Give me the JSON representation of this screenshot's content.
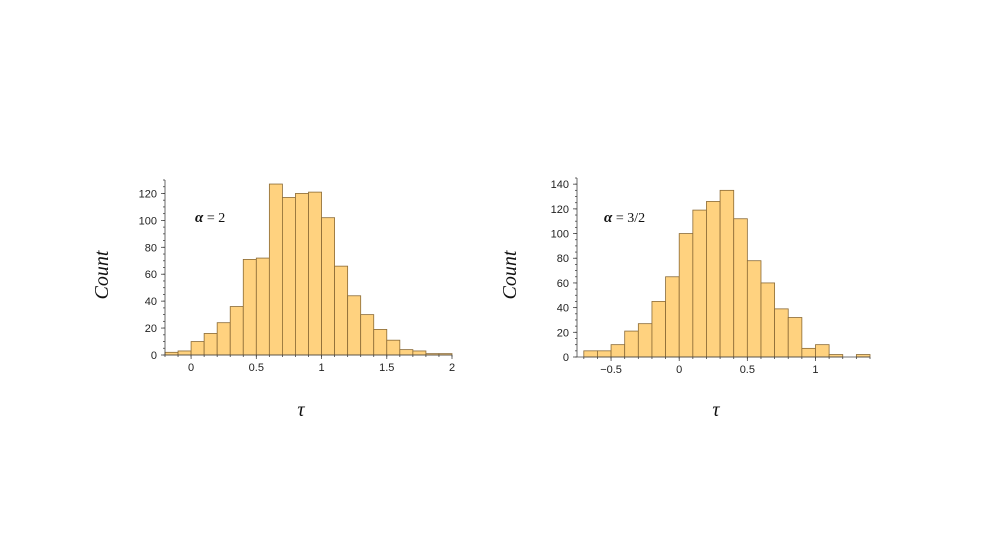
{
  "chart_data": [
    {
      "type": "bar",
      "subtype": "histogram",
      "annotation": {
        "symbol": "α",
        "text": " = 2"
      },
      "xlabel": "τ",
      "ylabel": "Count",
      "xlim": [
        -0.2,
        2.0
      ],
      "ylim": [
        0,
        130
      ],
      "xticks": [
        0,
        0.5,
        1,
        1.5,
        2
      ],
      "yticks": [
        0,
        20,
        40,
        60,
        80,
        100,
        120
      ],
      "bin_width": 0.1,
      "bin_starts": [
        -0.2,
        -0.1,
        0.0,
        0.1,
        0.2,
        0.3,
        0.4,
        0.5,
        0.6,
        0.7,
        0.8,
        0.9,
        1.0,
        1.1,
        1.2,
        1.3,
        1.4,
        1.5,
        1.6,
        1.7,
        1.8,
        1.9
      ],
      "values": [
        2,
        3,
        10,
        16,
        24,
        36,
        71,
        72,
        127,
        117,
        120,
        121,
        102,
        66,
        44,
        30,
        19,
        11,
        4,
        3,
        1,
        1
      ],
      "bar_color": "#FFD27F",
      "grid": false
    },
    {
      "type": "bar",
      "subtype": "histogram",
      "annotation": {
        "symbol": "α",
        "text": " = 3/2"
      },
      "xlabel": "τ",
      "ylabel": "Count",
      "xlim": [
        -0.75,
        1.4
      ],
      "ylim": [
        0,
        145
      ],
      "xticks": [
        -0.5,
        0,
        0.5,
        1
      ],
      "xtick_labels": [
        "−0.5",
        "0",
        "0.5",
        "1"
      ],
      "yticks": [
        0,
        20,
        40,
        60,
        80,
        100,
        120,
        140
      ],
      "bin_width": 0.1,
      "bin_starts": [
        -0.7,
        -0.6,
        -0.5,
        -0.4,
        -0.3,
        -0.2,
        -0.1,
        0.0,
        0.1,
        0.2,
        0.3,
        0.4,
        0.5,
        0.6,
        0.7,
        0.8,
        0.9,
        1.0,
        1.1,
        1.2,
        1.3
      ],
      "values": [
        5,
        5,
        10,
        21,
        27,
        45,
        65,
        100,
        119,
        126,
        135,
        112,
        78,
        60,
        39,
        32,
        7,
        10,
        2,
        0,
        2
      ],
      "bar_color": "#FFD27F",
      "grid": false
    }
  ]
}
